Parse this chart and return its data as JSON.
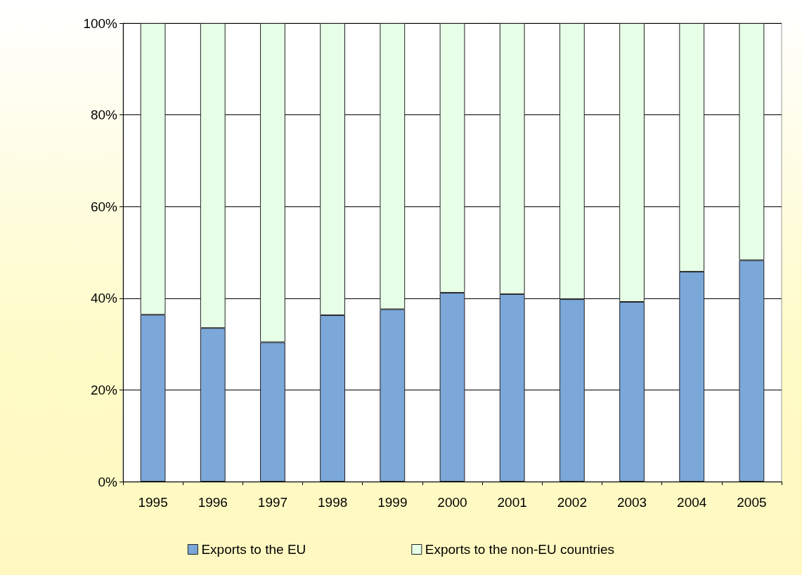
{
  "chart_data": {
    "type": "bar",
    "stacked": true,
    "categories": [
      "1995",
      "1996",
      "1997",
      "1998",
      "1999",
      "2000",
      "2001",
      "2002",
      "2003",
      "2004",
      "2005"
    ],
    "series": [
      {
        "name": "Exports to the EU",
        "color": "#7ba7d9",
        "values": [
          36.4,
          33.5,
          30.4,
          36.3,
          37.6,
          41.2,
          40.9,
          39.8,
          39.2,
          45.8,
          48.3
        ]
      },
      {
        "name": "Exports to the non-EU countries",
        "color": "#e6ffe6",
        "values": [
          63.6,
          66.5,
          69.6,
          63.7,
          62.4,
          58.8,
          59.1,
          60.2,
          60.8,
          54.2,
          51.7
        ]
      }
    ],
    "ylim": [
      0,
      100
    ],
    "yticks": [
      {
        "value": 0,
        "label": "0%"
      },
      {
        "value": 20,
        "label": "20%"
      },
      {
        "value": 40,
        "label": "40%"
      },
      {
        "value": 60,
        "label": "60%"
      },
      {
        "value": 80,
        "label": "80%"
      },
      {
        "value": 100,
        "label": "100%"
      }
    ],
    "grid": "y",
    "legend": "bottom"
  }
}
